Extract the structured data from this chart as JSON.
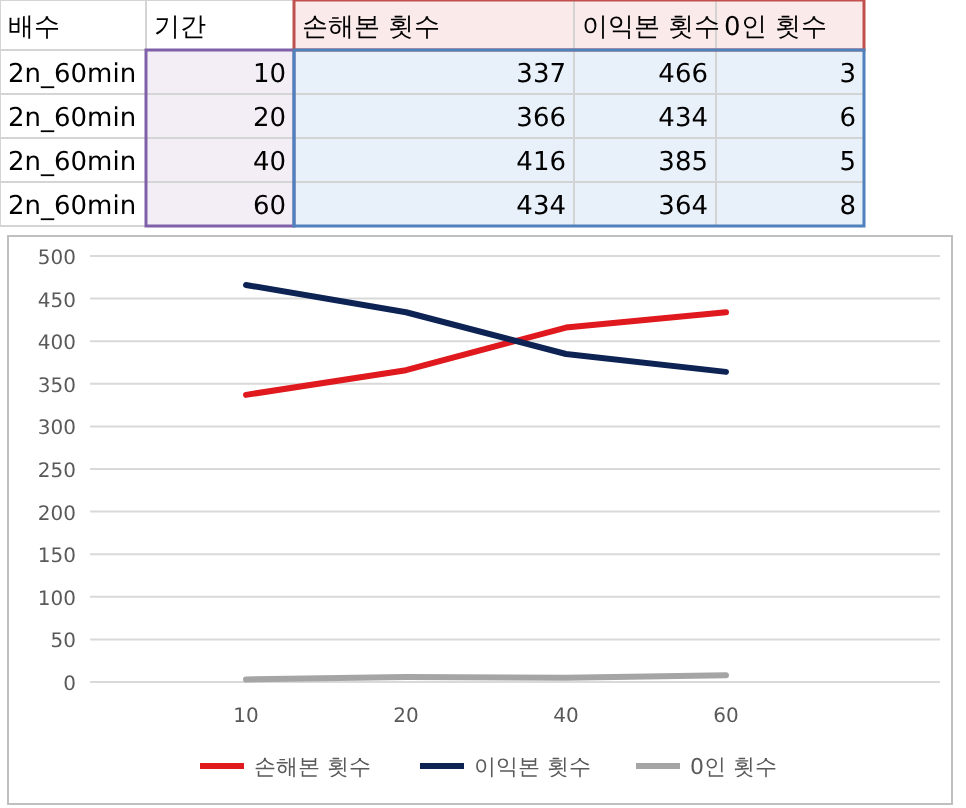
{
  "chart_data": [
    {
      "type": "other",
      "annotations": [
        "배수",
        "기간",
        "손해본 횟수",
        "이익본 횟수",
        "0인 횟수",
        "2n_60min",
        "10",
        "337",
        "466",
        "3",
        "2n_60min",
        "20",
        "366",
        "434",
        "6",
        "2n_60min",
        "40",
        "416",
        "385",
        "5",
        "2n_60min",
        "60",
        "434",
        "364",
        "8"
      ]
    },
    {
      "type": "line",
      "categories": [
        "10",
        "20",
        "40",
        "60"
      ],
      "series": [
        {
          "name": "손해본 횟수",
          "color": "#e0191e",
          "values": [
            337,
            366,
            416,
            434
          ]
        },
        {
          "name": "이익본 횟수",
          "color": "#0c2354",
          "values": [
            466,
            434,
            385,
            364
          ]
        },
        {
          "name": "0인 횟수",
          "color": "#a5a5a5",
          "values": [
            3,
            6,
            5,
            8
          ]
        }
      ],
      "ylim": [
        0,
        500
      ],
      "yticks": [
        0,
        50,
        100,
        150,
        200,
        250,
        300,
        350,
        400,
        450,
        500
      ],
      "grid": "y",
      "legend": "bottom",
      "marker": "none",
      "line_style": "solid"
    }
  ]
}
